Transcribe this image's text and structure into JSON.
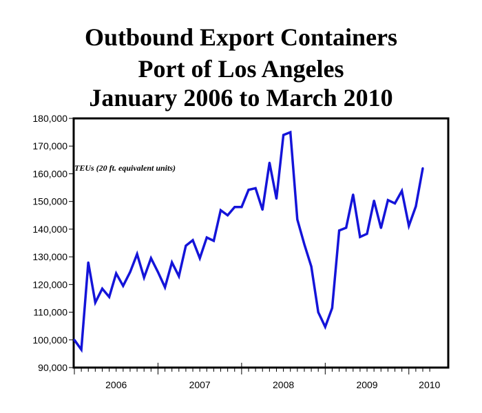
{
  "title": {
    "line1": "Outbound Export Containers",
    "line2": "Port of Los Angeles",
    "line3": "January 2006 to March 2010"
  },
  "chart_data": {
    "type": "line",
    "title": "Outbound Export Containers Port of Los Angeles January 2006 to March 2010",
    "xlabel": "",
    "ylabel": "",
    "annotation": "TEUs (20 ft. equivalent units)",
    "ylim": [
      90000,
      180000
    ],
    "yticks": [
      90000,
      100000,
      110000,
      120000,
      130000,
      140000,
      150000,
      160000,
      170000,
      180000
    ],
    "ytick_labels": [
      "90,000",
      "100,000",
      "110,000",
      "120,000",
      "130,000",
      "140,000",
      "150,000",
      "160,000",
      "170,000",
      "180,000"
    ],
    "x_labels": [
      "2006",
      "2007",
      "2008",
      "2009",
      "2010"
    ],
    "grid": false,
    "line_color": "#1414d9",
    "series": [
      {
        "name": "TEUs",
        "x": [
          "Jan 2006",
          "Feb 2006",
          "Mar 2006",
          "Apr 2006",
          "May 2006",
          "Jun 2006",
          "Jul 2006",
          "Aug 2006",
          "Sep 2006",
          "Oct 2006",
          "Nov 2006",
          "Dec 2006",
          "Jan 2007",
          "Feb 2007",
          "Mar 2007",
          "Apr 2007",
          "May 2007",
          "Jun 2007",
          "Jul 2007",
          "Aug 2007",
          "Sep 2007",
          "Oct 2007",
          "Nov 2007",
          "Dec 2007",
          "Jan 2008",
          "Feb 2008",
          "Mar 2008",
          "Apr 2008",
          "May 2008",
          "Jun 2008",
          "Jul 2008",
          "Aug 2008",
          "Sep 2008",
          "Oct 2008",
          "Nov 2008",
          "Dec 2008",
          "Jan 2009",
          "Feb 2009",
          "Mar 2009",
          "Apr 2009",
          "May 2009",
          "Jun 2009",
          "Jul 2009",
          "Aug 2009",
          "Sep 2009",
          "Oct 2009",
          "Nov 2009",
          "Dec 2009",
          "Jan 2010",
          "Feb 2010",
          "Mar 2010"
        ],
        "values": [
          100000,
          96500,
          128000,
          113500,
          118500,
          115500,
          124000,
          119500,
          124500,
          131000,
          122500,
          129500,
          124500,
          119000,
          128000,
          123000,
          134000,
          136000,
          129500,
          137000,
          135800,
          146800,
          145000,
          148000,
          148000,
          154200,
          154800,
          147000,
          164000,
          151000,
          174000,
          175000,
          143500,
          134500,
          126500,
          110000,
          104700,
          111500,
          139500,
          140500,
          152500,
          137200,
          138300,
          150300,
          140400,
          150500,
          149300,
          153800,
          141200,
          148200,
          162000
        ]
      }
    ]
  }
}
